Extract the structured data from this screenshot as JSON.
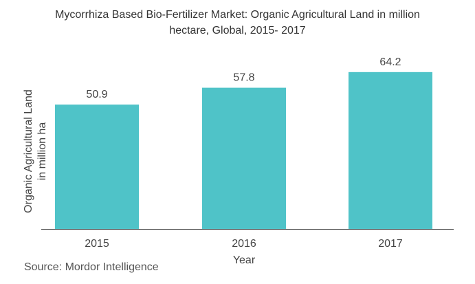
{
  "chart_data": {
    "type": "bar",
    "title_lines": [
      "Mycorrhiza Based Bio-Fertilizer Market: Organic Agricultural Land in million",
      "hectare, Global, 2015- 2017"
    ],
    "categories": [
      "2015",
      "2016",
      "2017"
    ],
    "values": [
      50.9,
      57.8,
      64.2
    ],
    "value_labels": [
      "50.9",
      "57.8",
      "64.2"
    ],
    "xlabel": "Year",
    "ylabel_lines": [
      "Organic Agricultural Land",
      "in million ha"
    ],
    "ylim": [
      0,
      74
    ],
    "grid": false,
    "legend": "none",
    "colors": {
      "bar": "#4fc3c8",
      "axis": "#555555",
      "text": "#444444"
    }
  },
  "source": "Source: Mordor Intelligence"
}
